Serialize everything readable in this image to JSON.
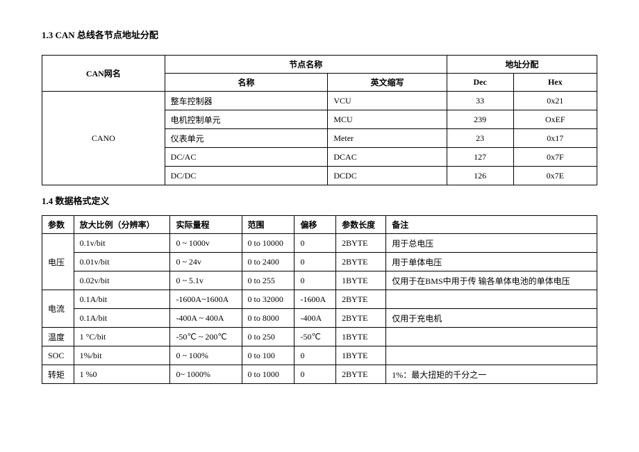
{
  "heading1": "1.3 CAN 总线各节点地址分配",
  "heading2": "1.4 数据格式定义",
  "table1": {
    "headers": {
      "canNet": "CAN网名",
      "nodeName": "节点名称",
      "name": "名称",
      "enAbbr": "英文缩写",
      "addrAlloc": "地址分配",
      "dec": "Dec",
      "hex": "Hex"
    },
    "netName": "CANO",
    "rows": [
      {
        "name": "整车控制器",
        "en": "VCU",
        "dec": "33",
        "hex": "0x21"
      },
      {
        "name": "电机控制单元",
        "en": "MCU",
        "dec": "239",
        "hex": "OxEF"
      },
      {
        "name": "仪表单元",
        "en": "Meter",
        "dec": "23",
        "hex": "0x17"
      },
      {
        "name": "DC/AC",
        "en": "DCAC",
        "dec": "127",
        "hex": "0x7F"
      },
      {
        "name": "DC/DC",
        "en": "DCDC",
        "dec": "126",
        "hex": "0x7E"
      }
    ]
  },
  "table2": {
    "headers": {
      "param": "参数",
      "scale": "放大比例（分辨率）",
      "range": "实际量程",
      "span": "范围",
      "offset": "偏移",
      "len": "参数长度",
      "note": "备注"
    },
    "rows": [
      {
        "param": "电压",
        "paramRowspan": 3,
        "scale": "0.1v/bit",
        "range": "0 ~ 1000v",
        "span": "0 to 10000",
        "offset": "0",
        "len": "2BYTE",
        "note": "用于总电压"
      },
      {
        "scale": "0.01v/bit",
        "range": "0 ~ 24v",
        "span": "0 to 2400",
        "offset": "0",
        "len": "2BYTE",
        "note": "用于单体电压"
      },
      {
        "scale": "0.02v/bit",
        "range": "0 ~ 5.1v",
        "span": "0 to 255",
        "offset": "0",
        "len": "1BYTE",
        "note": "仅用于在BMS中用于传 输各单体电池的单体电压"
      },
      {
        "param": "电流",
        "paramRowspan": 2,
        "scale": "0.1A/bit",
        "range": "-1600A~1600A",
        "span": "0 to 32000",
        "offset": "-1600A",
        "len": "2BYTE",
        "note": ""
      },
      {
        "scale": "0.1A/bit",
        "range": "-400A ~ 400A",
        "span": "0 to 8000",
        "offset": "-400A",
        "len": "2BYTE",
        "note": "仅用于充电机"
      },
      {
        "param": "温度",
        "paramRowspan": 1,
        "scale": "1 °C/bit",
        "range": "-50℃ ~ 200℃",
        "span": "0 to 250",
        "offset": "-50℃",
        "len": "1BYTE",
        "note": ""
      },
      {
        "param": "SOC",
        "paramRowspan": 1,
        "scale": "1%/bit",
        "range": "0 ~ 100%",
        "span": "0 to 100",
        "offset": "0",
        "len": "1BYTE",
        "note": ""
      },
      {
        "param": "转矩",
        "paramRowspan": 1,
        "scale": "1 %0",
        "range": "0~ 1000%",
        "span": "0 to 1000",
        "offset": "0",
        "len": "2BYTE",
        "note": "1%：最大扭矩的千分之一"
      }
    ]
  }
}
